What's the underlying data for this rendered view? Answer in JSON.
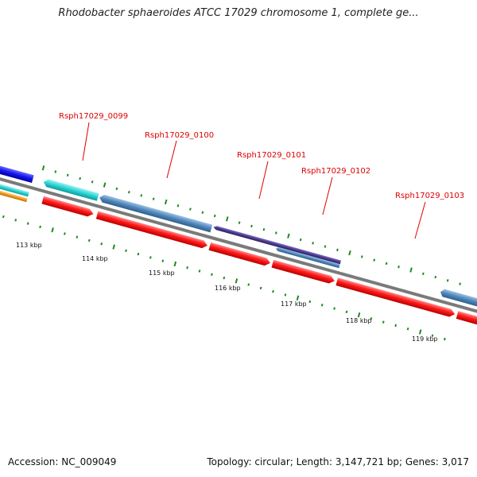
{
  "title": "Rhodobacter sphaeroides ATCC 17029 chromosome 1, complete ge...",
  "footer": {
    "accession": "Accession: NC_009049",
    "topology": "Topology: circular; Length: 3,147,721 bp; Genes: 3,017"
  },
  "colors": {
    "backbone": "#7a7a7a",
    "tick": "#1f8a1f",
    "label": "#dd0000",
    "forward_cds": "#ff1a1a",
    "steel_blue": "#4f86b9",
    "cyan": "#29d3d3",
    "indigo": "#4b3a8c",
    "blue": "#1515ee",
    "orange": "#f59a16"
  },
  "scale_labels": [
    "113 kbp",
    "114 kbp",
    "115 kbp",
    "116 kbp",
    "117 kbp",
    "118 kbp",
    "119 kbp"
  ],
  "gene_labels": [
    "Rsph17029_0099",
    "Rsph17029_0100",
    "Rsph17029_0101",
    "Rsph17029_0102",
    "Rsph17029_0103"
  ]
}
